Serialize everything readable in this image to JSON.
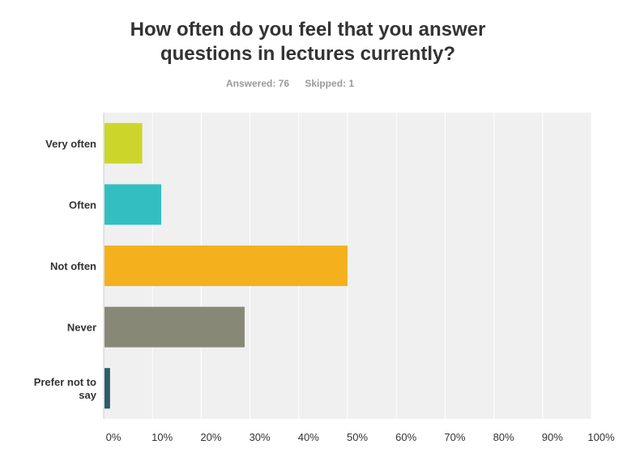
{
  "survey": {
    "answered_label": "Answered: 76",
    "skipped_label": "Skipped: 1"
  },
  "chart_data": {
    "type": "bar",
    "orientation": "horizontal",
    "title_lines": [
      "How often do you feel that you answer",
      "questions in lectures currently?"
    ],
    "categories": [
      {
        "lines": [
          "Very often"
        ]
      },
      {
        "lines": [
          "Often"
        ]
      },
      {
        "lines": [
          "Not often"
        ]
      },
      {
        "lines": [
          "Never"
        ]
      },
      {
        "lines": [
          "Prefer not to",
          "say"
        ]
      }
    ],
    "values": [
      7.9,
      11.8,
      50.0,
      28.9,
      1.3
    ],
    "colors": [
      "#ccd62a",
      "#33bfc1",
      "#f5b11d",
      "#888877",
      "#2d5d6a"
    ],
    "xlim": [
      0,
      100
    ],
    "ticks": [
      "0%",
      "10%",
      "20%",
      "30%",
      "40%",
      "50%",
      "60%",
      "70%",
      "80%",
      "90%",
      "100%"
    ],
    "grid": true,
    "plot_background": "#f0f0f0",
    "grid_color": "#ffffff"
  }
}
